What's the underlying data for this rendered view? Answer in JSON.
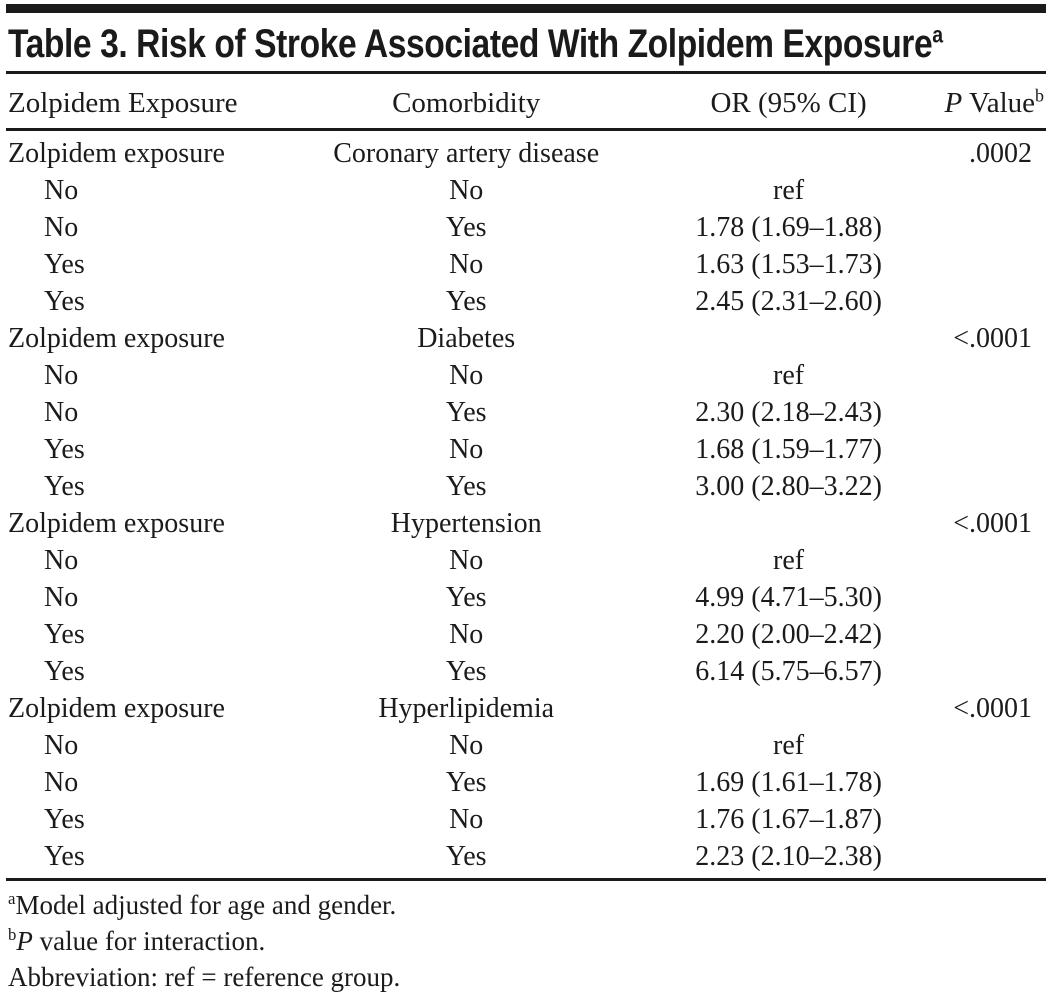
{
  "title": {
    "text": "Table 3. Risk of Stroke Associated With Zolpidem Exposure",
    "superscript": "a"
  },
  "table": {
    "columns": [
      {
        "label": "Zolpidem Exposure"
      },
      {
        "label": "Comorbidity"
      },
      {
        "label": "OR (95% CI)"
      },
      {
        "label_italic": "P",
        "label_rest": " Value",
        "superscript": "b"
      }
    ],
    "sections": [
      {
        "exposure": "Zolpidem exposure",
        "comorbidity": "Coronary artery disease",
        "or_ci": "",
        "p_value": ".0002",
        "rows": [
          {
            "exposure": "No",
            "comorbidity": "No",
            "or_ci": "ref"
          },
          {
            "exposure": "No",
            "comorbidity": "Yes",
            "or_ci": "1.78 (1.69–1.88)"
          },
          {
            "exposure": "Yes",
            "comorbidity": "No",
            "or_ci": "1.63 (1.53–1.73)"
          },
          {
            "exposure": "Yes",
            "comorbidity": "Yes",
            "or_ci": "2.45 (2.31–2.60)"
          }
        ]
      },
      {
        "exposure": "Zolpidem exposure",
        "comorbidity": "Diabetes",
        "or_ci": "",
        "p_value": "<.0001",
        "rows": [
          {
            "exposure": "No",
            "comorbidity": "No",
            "or_ci": "ref"
          },
          {
            "exposure": "No",
            "comorbidity": "Yes",
            "or_ci": "2.30 (2.18–2.43)"
          },
          {
            "exposure": "Yes",
            "comorbidity": "No",
            "or_ci": "1.68 (1.59–1.77)"
          },
          {
            "exposure": "Yes",
            "comorbidity": "Yes",
            "or_ci": "3.00 (2.80–3.22)"
          }
        ]
      },
      {
        "exposure": "Zolpidem exposure",
        "comorbidity": "Hypertension",
        "or_ci": "",
        "p_value": "<.0001",
        "rows": [
          {
            "exposure": "No",
            "comorbidity": "No",
            "or_ci": "ref"
          },
          {
            "exposure": "No",
            "comorbidity": "Yes",
            "or_ci": "4.99 (4.71–5.30)"
          },
          {
            "exposure": "Yes",
            "comorbidity": "No",
            "or_ci": "2.20 (2.00–2.42)"
          },
          {
            "exposure": "Yes",
            "comorbidity": "Yes",
            "or_ci": "6.14 (5.75–6.57)"
          }
        ]
      },
      {
        "exposure": "Zolpidem exposure",
        "comorbidity": "Hyperlipidemia",
        "or_ci": "",
        "p_value": "<.0001",
        "rows": [
          {
            "exposure": "No",
            "comorbidity": "No",
            "or_ci": "ref"
          },
          {
            "exposure": "No",
            "comorbidity": "Yes",
            "or_ci": "1.69 (1.61–1.78)"
          },
          {
            "exposure": "Yes",
            "comorbidity": "No",
            "or_ci": "1.76 (1.67–1.87)"
          },
          {
            "exposure": "Yes",
            "comorbidity": "Yes",
            "or_ci": "2.23 (2.10–2.38)"
          }
        ]
      }
    ]
  },
  "footnotes": [
    {
      "marker": "a",
      "parts": [
        {
          "text": "Model adjusted for age and gender."
        }
      ]
    },
    {
      "marker": "b",
      "parts": [
        {
          "text": "P",
          "italic": true
        },
        {
          "text": " value for interaction."
        }
      ]
    },
    {
      "marker": "",
      "parts": [
        {
          "text": "Abbreviation: ref = reference group."
        }
      ]
    }
  ]
}
